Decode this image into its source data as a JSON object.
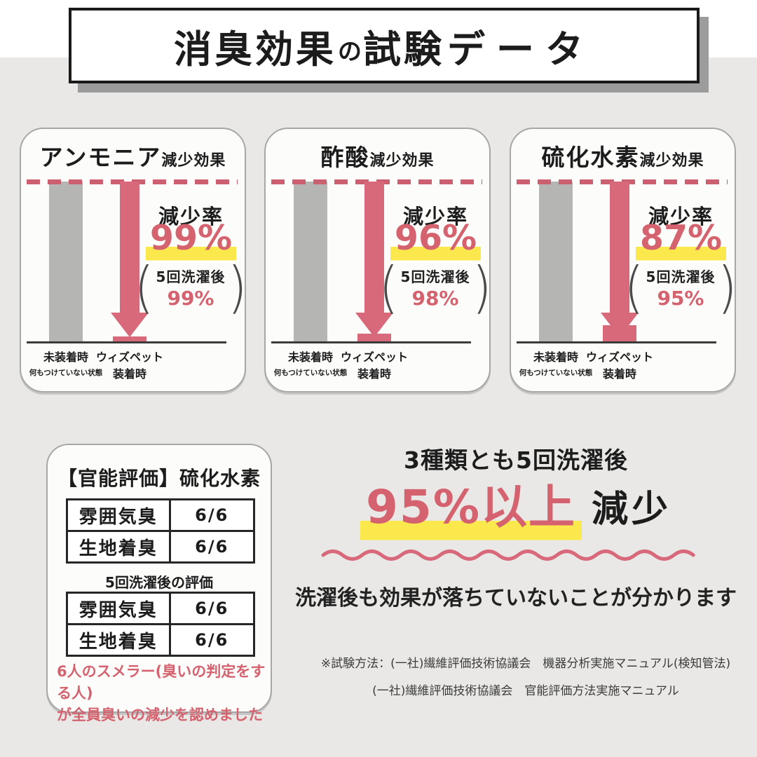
{
  "title": {
    "seg1": "消臭効果",
    "seg2": "の",
    "seg3": "試験",
    "seg4": "データ"
  },
  "colors": {
    "background": "#e9e8e6",
    "accent_pink": "#d5636f",
    "arrow_pink": "#d7697a",
    "highlight_yellow": "#fbe84d",
    "bar_gray": "#b5b5b4",
    "text_black": "#1c1c1c"
  },
  "charts": [
    {
      "substance": "アンモニア",
      "title_suffix": "減少効果",
      "rate_label": "減少率",
      "rate_value": "99%",
      "paren_line1": "5回洗濯後",
      "paren_line2": "99%",
      "axis_left_label": "未装着時",
      "axis_left_sub": "何もつけていない状態",
      "axis_right_label": "ウィズペット",
      "axis_right_sub": "装着時",
      "remaining_pct": 1
    },
    {
      "substance": "酢酸",
      "title_suffix": "減少効果",
      "rate_label": "減少率",
      "rate_value": "96%",
      "paren_line1": "5回洗濯後",
      "paren_line2": "98%",
      "axis_left_label": "未装着時",
      "axis_left_sub": "何もつけていない状態",
      "axis_right_label": "ウィズペット",
      "axis_right_sub": "装着時",
      "remaining_pct": 4
    },
    {
      "substance": "硫化水素",
      "title_suffix": "減少効果",
      "rate_label": "減少率",
      "rate_value": "87%",
      "paren_line1": "5回洗濯後",
      "paren_line2": "95%",
      "axis_left_label": "未装着時",
      "axis_left_sub": "何もつけていない状態",
      "axis_right_label": "ウィズペット",
      "axis_right_sub": "装着時",
      "remaining_pct": 13
    }
  ],
  "chart_data": [
    {
      "type": "bar",
      "title": "アンモニア減少効果",
      "categories": [
        "未装着時(何もつけていない状態)",
        "ウィズペット装着時"
      ],
      "values": [
        100,
        1
      ],
      "unit": "%",
      "ylim": [
        0,
        100
      ],
      "annotations": {
        "reduction_rate": "99%",
        "after_5_washes": "99%"
      }
    },
    {
      "type": "bar",
      "title": "酢酸減少効果",
      "categories": [
        "未装着時(何もつけていない状態)",
        "ウィズペット装着時"
      ],
      "values": [
        100,
        4
      ],
      "unit": "%",
      "ylim": [
        0,
        100
      ],
      "annotations": {
        "reduction_rate": "96%",
        "after_5_washes": "98%"
      }
    },
    {
      "type": "bar",
      "title": "硫化水素減少効果",
      "categories": [
        "未装着時(何もつけていない状態)",
        "ウィズペット装着時"
      ],
      "values": [
        100,
        13
      ],
      "unit": "%",
      "ylim": [
        0,
        100
      ],
      "annotations": {
        "reduction_rate": "87%",
        "after_5_washes": "95%"
      }
    }
  ],
  "sensory": {
    "title": "【官能評価】硫化水素",
    "table1": {
      "rows": [
        {
          "label": "雰囲気臭",
          "value": "6/6"
        },
        {
          "label": "生地着臭",
          "value": "6/6"
        }
      ]
    },
    "subtitle": "5回洗濯後の評価",
    "table2": {
      "rows": [
        {
          "label": "雰囲気臭",
          "value": "6/6"
        },
        {
          "label": "生地着臭",
          "value": "6/6"
        }
      ]
    },
    "note_line1": "6人のスメラー(臭いの判定をする人)",
    "note_line2": "が全員臭いの減少を認めました"
  },
  "summary": {
    "heading": "3種類とも5回洗濯後",
    "highlight": "95%以上",
    "suffix": "減少",
    "statement": "洗濯後も効果が落ちていないことが分かります"
  },
  "footnotes": {
    "line1": "※試験方法：(一社)繊維評価技術協議会　機器分析実施マニュアル(検知管法)",
    "line2": "(一社)繊維評価技術協議会　官能評価方法実施マニュアル"
  }
}
